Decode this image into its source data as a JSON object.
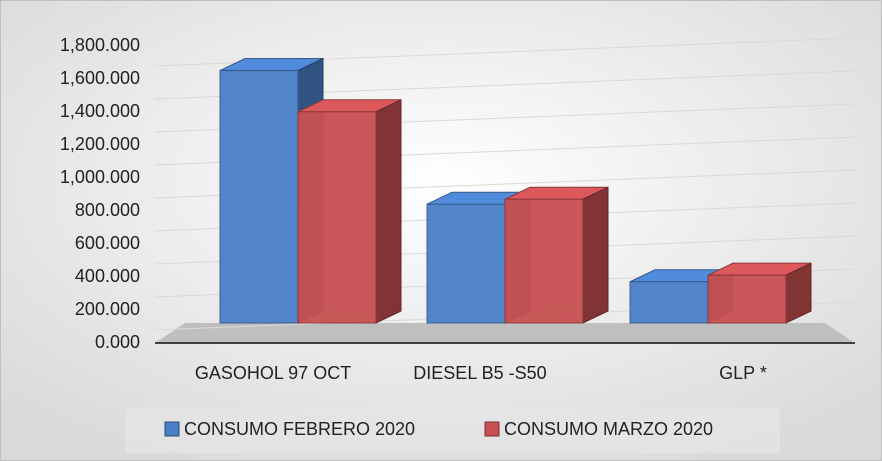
{
  "chart_data": {
    "type": "bar3d",
    "categories": [
      "GASOHOL 97 OCT",
      "DIESEL B5 -S50",
      "GLP *"
    ],
    "series": [
      {
        "name": "CONSUMO FEBRERO 2020",
        "color": "#4a7fc8",
        "values": [
          1530,
          720,
          250
        ]
      },
      {
        "name": "CONSUMO MARZO 2020",
        "color": "#c85052",
        "values": [
          1280,
          750,
          290
        ]
      }
    ],
    "ylim": [
      0,
      1800
    ],
    "yticks": [
      {
        "value": 0,
        "label": "0.000"
      },
      {
        "value": 200,
        "label": "200.000"
      },
      {
        "value": 400,
        "label": "400.000"
      },
      {
        "value": 600,
        "label": "600.000"
      },
      {
        "value": 800,
        "label": "800.000"
      },
      {
        "value": 1000,
        "label": "1,000.000"
      },
      {
        "value": 1200,
        "label": "1,200.000"
      },
      {
        "value": 1400,
        "label": "1,400.000"
      },
      {
        "value": 1600,
        "label": "1,600.000"
      },
      {
        "value": 1800,
        "label": "1,800.000"
      }
    ],
    "grid": true,
    "legend": "bottom"
  }
}
